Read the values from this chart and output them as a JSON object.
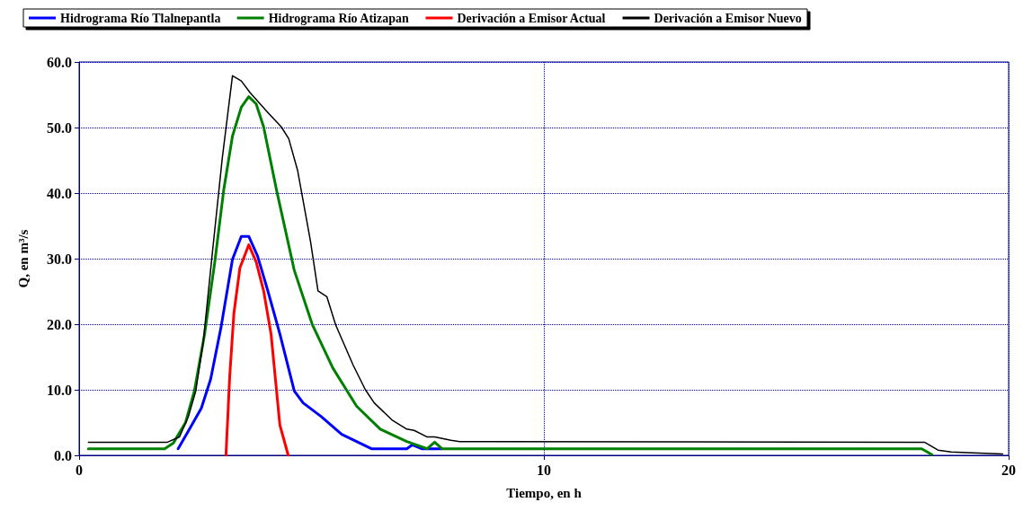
{
  "chart_data": {
    "type": "line",
    "xlabel": "Tiempo, en h",
    "ylabel": "Q, en m³/s",
    "xlim": [
      0,
      20
    ],
    "xticks": [
      0,
      10,
      20
    ],
    "ylim": [
      0,
      60
    ],
    "yticks": [
      {
        "value": 0,
        "label": "0.0"
      },
      {
        "value": 10,
        "label": "10.0"
      },
      {
        "value": 20,
        "label": "20.0"
      },
      {
        "value": 30,
        "label": "30.0"
      },
      {
        "value": 40,
        "label": "40.0"
      },
      {
        "value": 50,
        "label": "50.0"
      },
      {
        "value": 60,
        "label": "60.0"
      }
    ],
    "grid": true,
    "legend": "top",
    "marker": "none",
    "line_style": "solid",
    "series": [
      {
        "name": "Hidrograma Río Tlalnepantla",
        "color": "#0000ff",
        "x": [
          2.13,
          2.35,
          2.63,
          2.83,
          3.05,
          3.3,
          3.49,
          3.65,
          3.84,
          4.06,
          4.32,
          4.63,
          4.82,
          5.21,
          5.65,
          6.29,
          7.05,
          7.17,
          7.37,
          7.8
        ],
        "values": [
          1,
          3.7,
          7.2,
          11.6,
          19.4,
          29.9,
          33.4,
          33.4,
          30.4,
          25.1,
          18.5,
          9.8,
          8,
          5.9,
          3.2,
          1,
          1,
          1.6,
          1,
          1
        ]
      },
      {
        "name": "Hidrograma Río Atizapan",
        "color": "#008000",
        "x": [
          0.2,
          1.84,
          2.03,
          2.29,
          2.48,
          2.7,
          2.92,
          3.11,
          3.3,
          3.49,
          3.65,
          3.81,
          3.97,
          4.25,
          4.63,
          5.02,
          5.46,
          5.97,
          6.48,
          7.05,
          7.49,
          7.65,
          7.81,
          18.13,
          18.35
        ],
        "values": [
          1,
          1,
          1.9,
          5,
          9.8,
          18.5,
          29.5,
          40.4,
          48.7,
          53.1,
          54.7,
          53.6,
          50.1,
          40.4,
          28.2,
          19.9,
          13.3,
          7.5,
          4,
          2.1,
          1,
          2,
          1,
          1,
          0.1
        ]
      },
      {
        "name": "Derivación a Emisor Actual",
        "color": "#ff0000",
        "x": [
          3.16,
          3.24,
          3.33,
          3.46,
          3.65,
          3.81,
          3.97,
          4.13,
          4.32,
          4.5
        ],
        "values": [
          0,
          12,
          21.6,
          28.6,
          32.1,
          29.5,
          25.1,
          18.5,
          4.6,
          0
        ]
      },
      {
        "name": "Derivación a Emisor Nuevo",
        "color": "#000000",
        "x": [
          0.2,
          1.9,
          2.16,
          2.35,
          2.51,
          2.67,
          2.86,
          3.08,
          3.3,
          3.49,
          3.68,
          4.06,
          4.35,
          4.51,
          4.7,
          4.98,
          5.14,
          5.33,
          5.52,
          5.9,
          6.16,
          6.35,
          6.73,
          7.05,
          7.21,
          7.49,
          7.65,
          8,
          8.19,
          9,
          18.19,
          18.48,
          18.76,
          19.1,
          19.87
        ],
        "values": [
          2,
          2,
          2.8,
          5.9,
          9.8,
          17.2,
          30.4,
          45.3,
          57.9,
          57.1,
          55.3,
          52.3,
          50.1,
          48.3,
          43.5,
          32.6,
          25.1,
          24.2,
          19.9,
          13.7,
          10,
          8,
          5.4,
          4,
          3.8,
          2.8,
          2.8,
          2.3,
          2.1,
          2.1,
          2,
          0.8,
          0.5,
          0.4,
          0.2
        ]
      }
    ]
  }
}
